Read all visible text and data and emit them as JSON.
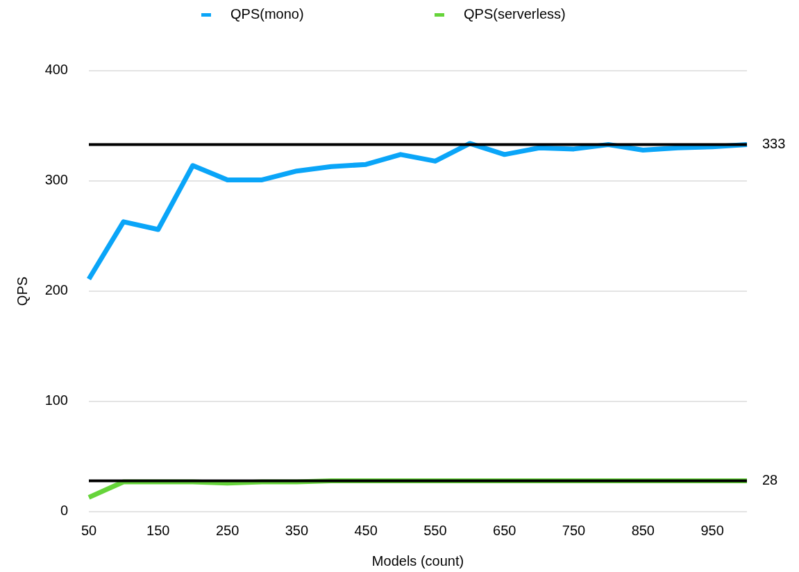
{
  "chart_data": {
    "type": "line",
    "xlabel": "Models (count)",
    "ylabel": "QPS",
    "x": [
      50,
      100,
      150,
      200,
      250,
      300,
      350,
      400,
      450,
      500,
      550,
      600,
      650,
      700,
      750,
      800,
      850,
      900,
      950,
      1000
    ],
    "series": [
      {
        "name": "QPS(mono)",
        "color": "#0aa5f8",
        "values": [
          211,
          263,
          256,
          314,
          301,
          301,
          309,
          313,
          315,
          324,
          318,
          334,
          324,
          330,
          329,
          333,
          328,
          330,
          331,
          333
        ]
      },
      {
        "name": "QPS(serverless)",
        "color": "#66d43a",
        "values": [
          13,
          27,
          27,
          27,
          26,
          27,
          27,
          28,
          28,
          28,
          28,
          28,
          28,
          28,
          28,
          28,
          28,
          28,
          28,
          28
        ]
      }
    ],
    "xlim": [
      50,
      1000
    ],
    "xticks": [
      50,
      150,
      250,
      350,
      450,
      550,
      650,
      750,
      850,
      950
    ],
    "ylim": [
      0,
      400
    ],
    "yticks": [
      0,
      100,
      200,
      300,
      400
    ],
    "ref_lines": [
      {
        "axis": "y",
        "value": 333,
        "label": "333",
        "color": "#000000"
      },
      {
        "axis": "y",
        "value": 28,
        "label": "28",
        "color": "#000000"
      }
    ],
    "grid": "y",
    "legend": "top",
    "marker": "none",
    "line_style": "solid"
  }
}
